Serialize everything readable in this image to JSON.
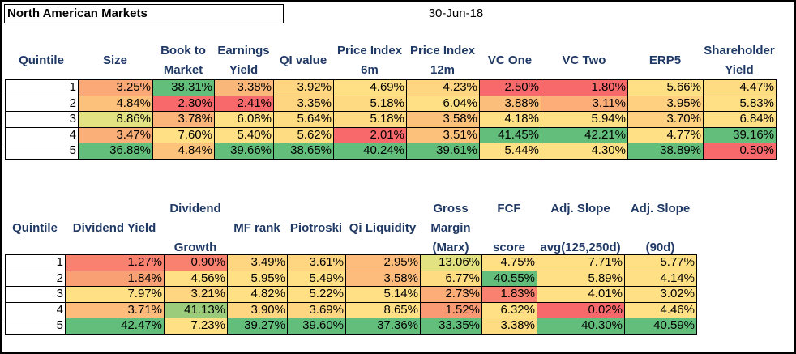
{
  "title": "North American Markets",
  "date": "30-Jun-18",
  "colors": {
    "header_text": "#1f3864",
    "scale": [
      "#f8696b",
      "#fa9a74",
      "#fcbf7b",
      "#ffe084",
      "#fbe983",
      "#e3e282",
      "#c2d880",
      "#9bcc7c",
      "#63be7b"
    ]
  },
  "table1": {
    "headers": [
      [
        "Quintile"
      ],
      [
        "Size"
      ],
      [
        "Book to",
        "Market"
      ],
      [
        "Earnings",
        "Yield"
      ],
      [
        "QI value"
      ],
      [
        "Price Index",
        "6m"
      ],
      [
        "Price Index",
        "12m"
      ],
      [
        "VC One"
      ],
      [
        "VC Two"
      ],
      [
        "ERP5"
      ],
      [
        "Shareholder",
        "Yield"
      ]
    ],
    "rows": [
      [
        "1",
        "3.25%",
        "38.31%",
        "3.38%",
        "3.92%",
        "4.69%",
        "4.23%",
        "2.50%",
        "1.80%",
        "5.66%",
        "4.47%"
      ],
      [
        "2",
        "4.84%",
        "2.30%",
        "2.41%",
        "3.35%",
        "5.18%",
        "6.04%",
        "3.88%",
        "3.11%",
        "3.95%",
        "5.83%"
      ],
      [
        "3",
        "8.86%",
        "3.78%",
        "6.08%",
        "5.64%",
        "5.18%",
        "3.58%",
        "4.18%",
        "5.94%",
        "3.70%",
        "6.84%"
      ],
      [
        "4",
        "3.47%",
        "7.60%",
        "5.40%",
        "5.62%",
        "2.01%",
        "3.51%",
        "41.45%",
        "42.21%",
        "4.77%",
        "39.16%"
      ],
      [
        "5",
        "36.88%",
        "4.84%",
        "39.66%",
        "38.65%",
        "40.24%",
        "39.61%",
        "5.44%",
        "4.30%",
        "38.89%",
        "0.50%"
      ]
    ],
    "fills": [
      [
        "#ffffff",
        "#fbaa77",
        "#63be7b",
        "#f9b77a",
        "#fed580",
        "#ffe084",
        "#fed580",
        "#f8696b",
        "#f8696b",
        "#ffe084",
        "#fedc82"
      ],
      [
        "#ffffff",
        "#fcc27c",
        "#f8696b",
        "#f8696b",
        "#fed580",
        "#fedb82",
        "#ffe084",
        "#fcbf7b",
        "#fcad78",
        "#fed07f",
        "#ffe084"
      ],
      [
        "#ffffff",
        "#e3e282",
        "#fbb479",
        "#ffe084",
        "#fedc82",
        "#fedb82",
        "#fcc27c",
        "#ffe084",
        "#ffe084",
        "#fed07f",
        "#ffe084"
      ],
      [
        "#ffffff",
        "#fbaf78",
        "#ffe084",
        "#ffe084",
        "#fedc82",
        "#f8696b",
        "#fcc27c",
        "#63be7b",
        "#63be7b",
        "#ffe084",
        "#63be7b"
      ],
      [
        "#ffffff",
        "#63be7b",
        "#fcc37c",
        "#63be7b",
        "#63be7b",
        "#63be7b",
        "#63be7b",
        "#ffe084",
        "#ffe084",
        "#63be7b",
        "#f8696b"
      ]
    ]
  },
  "table2": {
    "headers": [
      [
        "Quintile"
      ],
      [
        "Dividend Yield"
      ],
      [
        "Dividend",
        "Growth"
      ],
      [
        "MF rank"
      ],
      [
        "Piotroski"
      ],
      [
        "Qi Liquidity"
      ],
      [
        "Gross",
        "Margin",
        "(Marx)"
      ],
      [
        "FCF",
        "score"
      ],
      [
        "Adj. Slope",
        "avg(125,250d)"
      ],
      [
        "Adj. Slope",
        "(90d)"
      ]
    ],
    "rows": [
      [
        "1",
        "1.27%",
        "0.90%",
        "3.49%",
        "3.61%",
        "2.95%",
        "13.06%",
        "4.75%",
        "7.71%",
        "5.77%"
      ],
      [
        "2",
        "1.84%",
        "4.56%",
        "5.95%",
        "5.49%",
        "3.58%",
        "6.77%",
        "40.55%",
        "5.89%",
        "4.14%"
      ],
      [
        "3",
        "7.97%",
        "3.21%",
        "4.82%",
        "5.22%",
        "5.14%",
        "2.73%",
        "1.83%",
        "4.01%",
        "3.02%"
      ],
      [
        "4",
        "3.71%",
        "41.13%",
        "3.90%",
        "3.69%",
        "8.65%",
        "1.52%",
        "6.32%",
        "0.02%",
        "4.46%"
      ],
      [
        "5",
        "42.47%",
        "7.23%",
        "39.27%",
        "39.60%",
        "37.36%",
        "33.35%",
        "3.38%",
        "40.30%",
        "40.59%"
      ]
    ],
    "fills": [
      [
        "#ffffff",
        "#f8816f",
        "#f8816f",
        "#fed580",
        "#fed580",
        "#fdbc7b",
        "#e3e282",
        "#ffe084",
        "#ffe084",
        "#ffe084"
      ],
      [
        "#ffffff",
        "#f9a074",
        "#ffe084",
        "#ffe084",
        "#ffe084",
        "#fdbc7b",
        "#fedc82",
        "#63be7b",
        "#ffe084",
        "#ffe084"
      ],
      [
        "#ffffff",
        "#ffe084",
        "#fed580",
        "#ffe084",
        "#ffe084",
        "#ffe084",
        "#fcad78",
        "#f8816f",
        "#ffe084",
        "#ffe084"
      ],
      [
        "#ffffff",
        "#fdbc7b",
        "#9bcc7c",
        "#fed580",
        "#fed580",
        "#ffe084",
        "#fa9a74",
        "#ffe084",
        "#f8696b",
        "#ffe084"
      ],
      [
        "#ffffff",
        "#63be7b",
        "#ffe084",
        "#63be7b",
        "#63be7b",
        "#63be7b",
        "#63be7b",
        "#fedc82",
        "#63be7b",
        "#63be7b"
      ]
    ]
  }
}
